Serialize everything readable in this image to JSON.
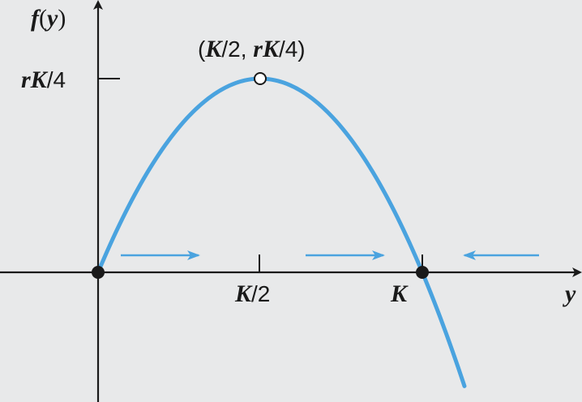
{
  "chart_data": {
    "type": "line",
    "ylabel": "f(y)",
    "xlabel": "y",
    "xticks": [
      {
        "value": 0.5,
        "label": "K/2"
      },
      {
        "value": 1.0,
        "label": "K"
      }
    ],
    "yticks": [
      {
        "value": 0.25,
        "label": "rK/4"
      }
    ],
    "curve": {
      "equation": "f(y) = r y (1 - y/K)",
      "x": [
        0,
        0.125,
        0.25,
        0.375,
        0.5,
        0.625,
        0.75,
        0.875,
        1.0,
        1.13
      ],
      "y": [
        0,
        0.109,
        0.1875,
        0.234,
        0.25,
        0.234,
        0.1875,
        0.109,
        0,
        -0.147
      ]
    },
    "equilibria": [
      {
        "x": 0,
        "y": 0,
        "style": "filled"
      },
      {
        "x": 1.0,
        "y": 0,
        "style": "filled"
      }
    ],
    "max_point": {
      "x": 0.5,
      "y": 0.25,
      "style": "open",
      "label": "(K/2, rK/4)"
    },
    "flow_arrows": [
      {
        "x_from": 0.07,
        "x_to": 0.31,
        "direction": "right"
      },
      {
        "x_from": 0.64,
        "x_to": 0.88,
        "direction": "right"
      },
      {
        "x_from": 1.36,
        "x_to": 1.13,
        "direction": "left"
      }
    ],
    "xlim": [
      -0.3,
      1.5
    ],
    "ylim": [
      -0.33,
      0.28
    ],
    "colors": {
      "curve": "#4aa3df",
      "axis": "#1a1a1a",
      "background": "#e8e9ea"
    }
  }
}
